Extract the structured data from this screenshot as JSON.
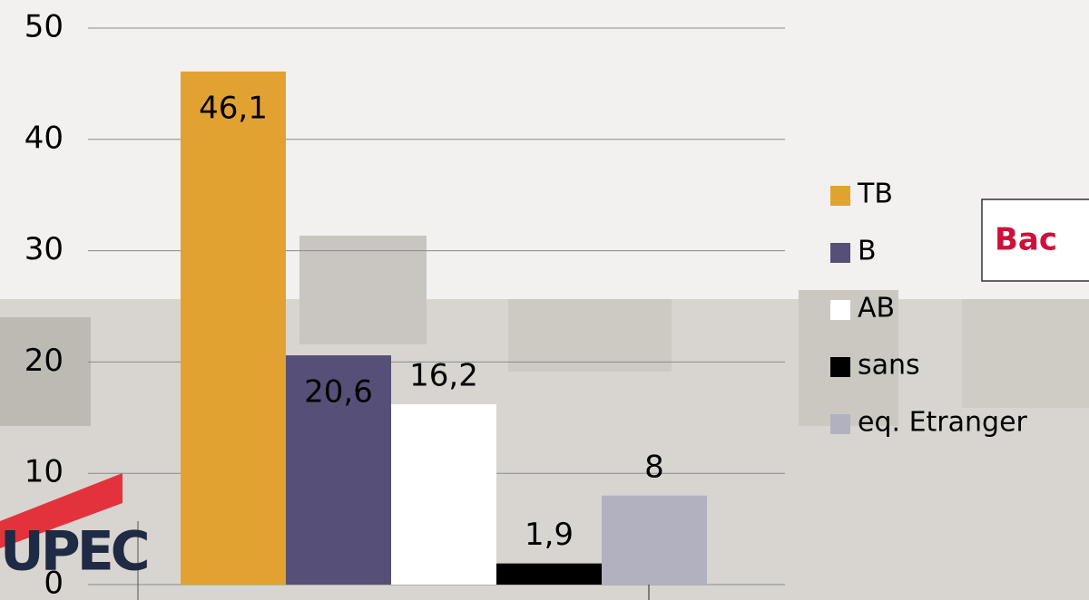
{
  "chart_data": {
    "type": "bar",
    "categories": [
      null
    ],
    "series": [
      {
        "name": "TB",
        "color": "#e2a232",
        "values": [
          46.1
        ],
        "value_labels": [
          "46,1"
        ]
      },
      {
        "name": "B",
        "color": "#564f78",
        "values": [
          20.6
        ],
        "value_labels": [
          "20,6"
        ]
      },
      {
        "name": "AB",
        "color": "#ffffff",
        "values": [
          16.2
        ],
        "value_labels": [
          "16,2"
        ]
      },
      {
        "name": "sans",
        "color": "#000000",
        "values": [
          1.9
        ],
        "value_labels": [
          "1,9"
        ]
      },
      {
        "name": "eq. Etranger",
        "color": "#b2b1bf",
        "values": [
          8
        ],
        "value_labels": [
          "8"
        ]
      }
    ],
    "ylim": [
      0,
      50
    ],
    "yticks": [
      0,
      10,
      20,
      30,
      40,
      50
    ],
    "grid": true,
    "legend": "right",
    "annotations": [
      "Bac",
      "UPEC"
    ]
  }
}
